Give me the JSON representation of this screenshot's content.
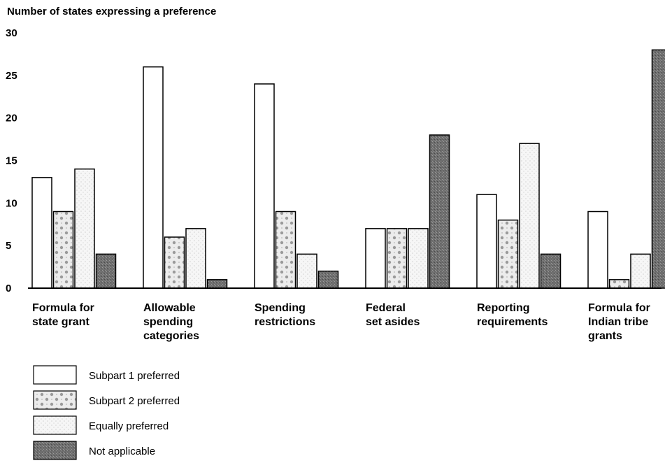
{
  "chart_data": {
    "type": "bar",
    "title": "",
    "ylabel": "Number of states expressing a preference",
    "xlabel": "",
    "ylim": [
      0,
      30
    ],
    "yticks": [
      0,
      5,
      10,
      15,
      20,
      25,
      30
    ],
    "grid": false,
    "legend_position": "bottom-left",
    "categories": [
      [
        "Formula for",
        "state grant"
      ],
      [
        "Allowable",
        "spending",
        "categories"
      ],
      [
        "Spending",
        "restrictions"
      ],
      [
        "Federal",
        "set asides"
      ],
      [
        "Reporting",
        "requirements"
      ],
      [
        "Formula for",
        "Indian tribe",
        "grants"
      ]
    ],
    "series": [
      {
        "name": "Subpart 1 preferred",
        "pattern": "plain",
        "values": [
          13,
          26,
          24,
          7,
          11,
          9
        ]
      },
      {
        "name": "Subpart 2 preferred",
        "pattern": "dotted",
        "values": [
          9,
          6,
          9,
          7,
          8,
          1
        ]
      },
      {
        "name": "Equally preferred",
        "pattern": "light",
        "values": [
          14,
          7,
          4,
          7,
          17,
          4
        ]
      },
      {
        "name": "Not applicable",
        "pattern": "dark",
        "values": [
          4,
          1,
          2,
          18,
          4,
          28
        ]
      }
    ]
  }
}
